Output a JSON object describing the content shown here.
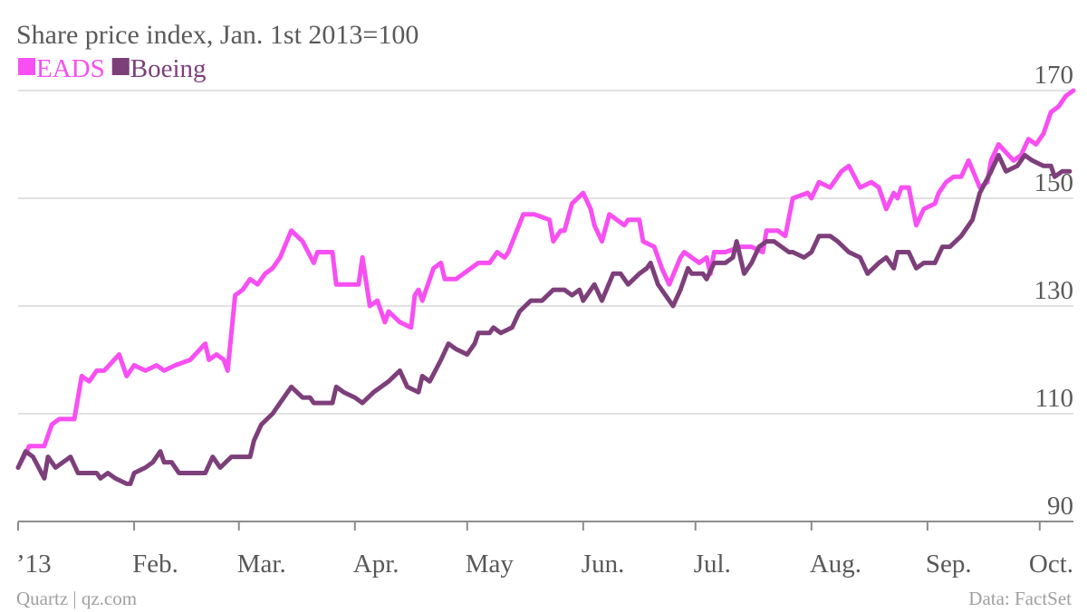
{
  "chart_data": {
    "type": "line",
    "title": "Share price index, Jan. 1st 2013=100",
    "credit": "Quartz | qz.com",
    "source": "Data: FactSet",
    "legend": "top-left",
    "grid": true,
    "xlim": [
      0,
      282
    ],
    "xticks": [
      {
        "value": 0,
        "label": "’13"
      },
      {
        "value": 31,
        "label": "Feb."
      },
      {
        "value": 59,
        "label": "Mar."
      },
      {
        "value": 90,
        "label": "Apr."
      },
      {
        "value": 120,
        "label": "May"
      },
      {
        "value": 151,
        "label": "Jun."
      },
      {
        "value": 181,
        "label": "Jul."
      },
      {
        "value": 212,
        "label": "Aug."
      },
      {
        "value": 243,
        "label": "Sep."
      },
      {
        "value": 273,
        "label": "Oct."
      }
    ],
    "ylim": [
      90,
      170
    ],
    "yticks": [
      90,
      110,
      130,
      150,
      170
    ],
    "series": [
      {
        "name": "EADS",
        "color": "#f74ff2",
        "x": [
          0,
          3,
          7,
          9,
          11,
          15,
          17,
          19,
          21,
          23,
          27,
          29,
          31,
          34,
          37,
          39,
          42,
          46,
          50,
          51,
          53,
          55,
          56,
          58,
          60,
          62,
          64,
          66,
          68,
          70,
          73,
          76,
          79,
          80,
          84,
          85,
          91,
          92,
          94,
          96,
          98,
          99,
          102,
          105,
          106,
          107,
          108,
          111,
          113,
          114,
          117,
          121,
          123,
          126,
          128,
          130,
          131,
          135,
          138,
          142,
          143,
          145,
          146,
          148,
          151,
          153,
          154,
          156,
          158,
          160,
          162,
          163,
          166,
          167,
          170,
          172,
          174,
          177,
          178,
          182,
          184,
          185,
          186,
          189,
          193,
          196,
          199,
          200,
          203,
          205,
          207,
          211,
          212,
          214,
          217,
          218,
          220,
          222,
          225,
          228,
          230,
          232,
          234,
          235,
          236,
          238,
          240,
          242,
          245,
          246,
          248,
          250,
          252,
          254,
          257,
          259,
          260,
          262,
          266,
          268,
          270,
          272,
          274,
          276,
          278,
          280,
          282
        ],
        "values": [
          100,
          104,
          104,
          108,
          109,
          109,
          117,
          116,
          118,
          118,
          121,
          117,
          119,
          118,
          119,
          118,
          119,
          120,
          123,
          120,
          121,
          120,
          118,
          132,
          133,
          135,
          134,
          136,
          137,
          139,
          144,
          142,
          138,
          140,
          140,
          134,
          134,
          139,
          130,
          131,
          127,
          129,
          127,
          126,
          132,
          133,
          131,
          137,
          138,
          135,
          135,
          137,
          138,
          138,
          140,
          139,
          140,
          147,
          147,
          146,
          142,
          144,
          144,
          149,
          151,
          148,
          145,
          142,
          147,
          146,
          145,
          146,
          146,
          142,
          141,
          137,
          134,
          139,
          140,
          138,
          139,
          136,
          140,
          140,
          141,
          141,
          140,
          144,
          144,
          143,
          150,
          151,
          150,
          153,
          152,
          153,
          155,
          156,
          152,
          153,
          152,
          148,
          151,
          150,
          152,
          152,
          145,
          148,
          149,
          151,
          153,
          154,
          154,
          157,
          152,
          153,
          157,
          160,
          157,
          158,
          161,
          160,
          162,
          166,
          167,
          169,
          170
        ]
      },
      {
        "name": "Boeing",
        "color": "#7d3f7a",
        "x": [
          0,
          2,
          4,
          7,
          8,
          10,
          14,
          16,
          21,
          22,
          24,
          26,
          29,
          30,
          31,
          34,
          36,
          38,
          39,
          41,
          43,
          47,
          50,
          52,
          54,
          57,
          59,
          62,
          63,
          65,
          68,
          70,
          73,
          76,
          78,
          79,
          82,
          84,
          85,
          87,
          90,
          92,
          95,
          97,
          99,
          102,
          104,
          107,
          108,
          110,
          113,
          115,
          117,
          120,
          122,
          123,
          126,
          127,
          129,
          132,
          134,
          137,
          140,
          143,
          146,
          148,
          150,
          151,
          154,
          156,
          159,
          161,
          163,
          166,
          168,
          169,
          171,
          173,
          175,
          177,
          179,
          180,
          183,
          184,
          186,
          189,
          191,
          192,
          194,
          196,
          198,
          200,
          202,
          204,
          206,
          207,
          210,
          212,
          214,
          217,
          219,
          222,
          225,
          227,
          230,
          232,
          234,
          235,
          238,
          240,
          242,
          245,
          247,
          249,
          252,
          255,
          257,
          260,
          262,
          264,
          267,
          269,
          271,
          274,
          276,
          277,
          279,
          281
        ],
        "values": [
          100,
          103,
          102,
          98,
          102,
          100,
          102,
          99,
          99,
          98,
          99,
          98,
          97,
          97,
          99,
          100,
          101,
          103,
          101,
          101,
          99,
          99,
          99,
          102,
          100,
          102,
          102,
          102,
          105,
          108,
          110,
          112,
          115,
          113,
          113,
          112,
          112,
          112,
          115,
          114,
          113,
          112,
          114,
          115,
          116,
          118,
          115,
          114,
          117,
          116,
          120,
          123,
          122,
          121,
          123,
          125,
          125,
          126,
          125,
          126,
          129,
          131,
          131,
          133,
          133,
          132,
          133,
          131,
          134,
          131,
          136,
          136,
          134,
          136,
          137,
          138,
          134,
          132,
          130,
          133,
          137,
          136,
          136,
          135,
          138,
          138,
          139,
          142,
          136,
          138,
          141,
          142,
          142,
          141,
          140,
          140,
          139,
          140,
          143,
          143,
          142,
          140,
          139,
          136,
          138,
          139,
          137,
          140,
          140,
          137,
          138,
          138,
          141,
          141,
          143,
          146,
          151,
          155,
          158,
          155,
          156,
          158,
          157,
          156,
          156,
          154,
          155,
          155
        ]
      }
    ]
  }
}
